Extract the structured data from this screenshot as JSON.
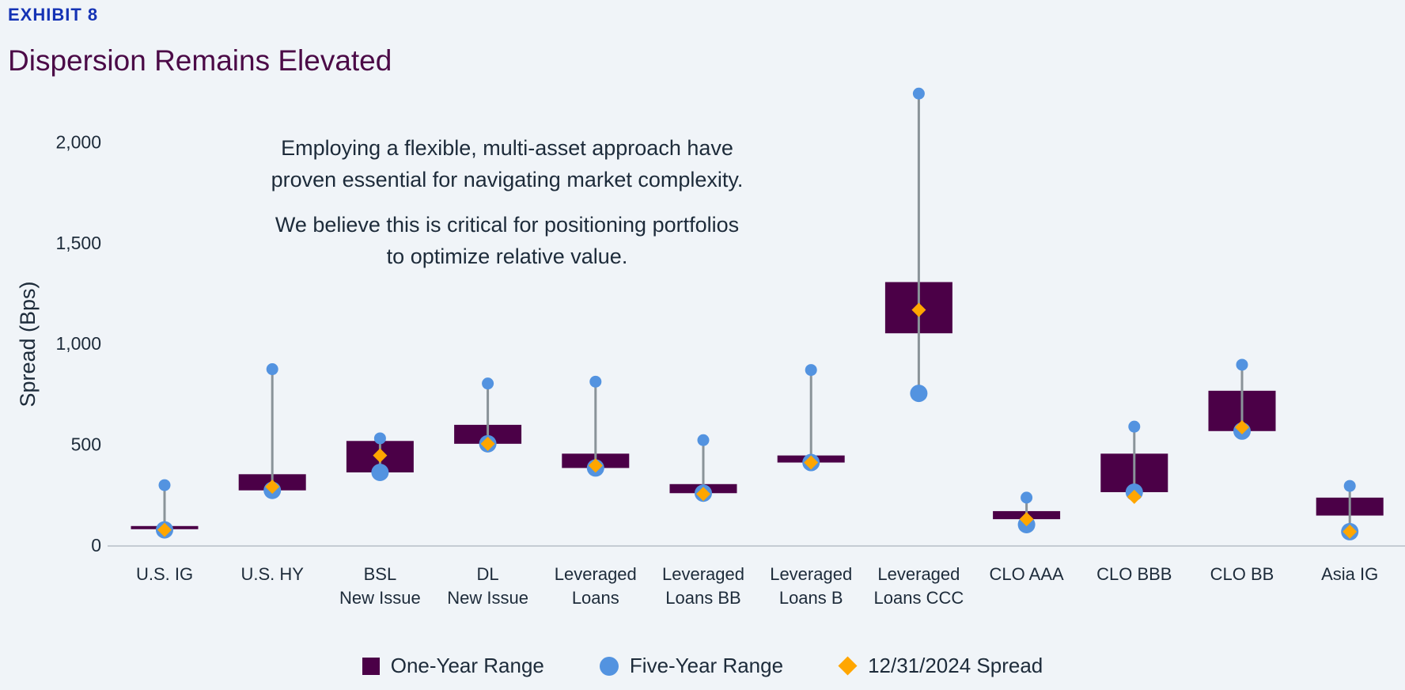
{
  "header": {
    "exhibit": "EXHIBIT 8",
    "title": "Dispersion Remains Elevated"
  },
  "annotation": {
    "paragraph1": [
      "Employing a flexible, multi-asset approach have",
      "proven essential for navigating market complexity."
    ],
    "paragraph2": [
      "We believe this is critical for positioning portfolios",
      "to optimize relative value."
    ]
  },
  "colors": {
    "one_year": "#4b0047",
    "five_year": "#5393e0",
    "spread": "#ffa600",
    "whisker": "#8a9399"
  },
  "chart_data": {
    "type": "range",
    "title": "Dispersion Remains Elevated",
    "ylabel": "Spread (Bps)",
    "xlabel": "",
    "ylim": [
      0,
      2250
    ],
    "yticks": [
      0,
      500,
      1000,
      1500,
      2000
    ],
    "ytick_labels": [
      "0",
      "500",
      "1,000",
      "1,500",
      "2,000"
    ],
    "grid": false,
    "legend_position": "bottom",
    "legend": [
      "One-Year Range",
      "Five-Year Range",
      "12/31/2024 Spread"
    ],
    "categories": [
      [
        "U.S. IG"
      ],
      [
        "U.S. HY"
      ],
      [
        "BSL",
        "New Issue"
      ],
      [
        "DL",
        "New Issue"
      ],
      [
        "Leveraged",
        "Loans"
      ],
      [
        "Leveraged",
        "Loans BB"
      ],
      [
        "Leveraged",
        "Loans B"
      ],
      [
        "Leveraged",
        "Loans CCC"
      ],
      [
        "CLO AAA"
      ],
      [
        "CLO BBB"
      ],
      [
        "CLO BB"
      ],
      [
        "Asia IG"
      ]
    ],
    "one_year_low": [
      80,
      272,
      361,
      503,
      383,
      258,
      410,
      1051,
      129,
      263,
      566,
      147
    ],
    "one_year_high": [
      95,
      352,
      517,
      597,
      454,
      303,
      445,
      1305,
      169,
      454,
      766,
      236
    ],
    "five_year_low": [
      76,
      272,
      361,
      503,
      383,
      258,
      410,
      753,
      102,
      263,
      566,
      67
    ],
    "five_year_high": [
      298,
      873,
      530,
      802,
      811,
      521,
      869,
      2240,
      236,
      588,
      895,
      294
    ],
    "spread_2024": [
      76,
      290,
      445,
      503,
      395,
      254,
      410,
      1167,
      129,
      240,
      585,
      67
    ]
  }
}
